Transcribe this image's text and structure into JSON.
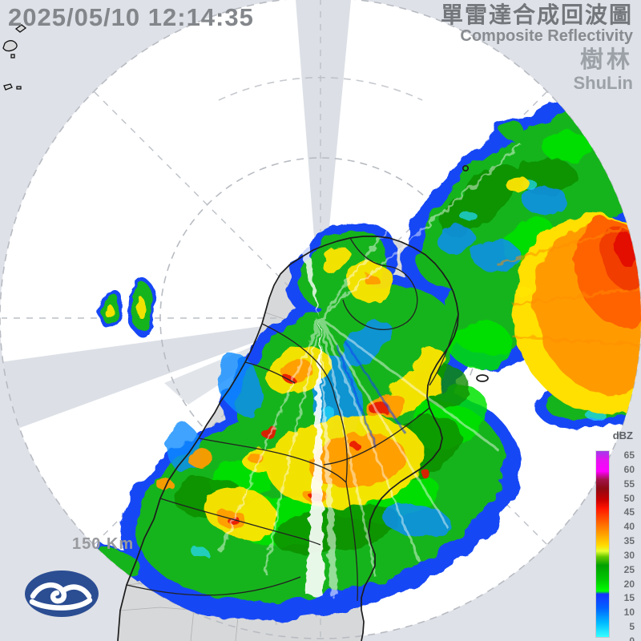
{
  "header": {
    "timestamp": "2025/05/10 12:14:35",
    "product_title_zh": "單雷達合成回波圖",
    "product_title_en": "Composite Reflectivity",
    "station_name_zh": "樹林",
    "station_name_en": "ShuLin"
  },
  "map": {
    "range_ring_label": "150 Km"
  },
  "legend": {
    "unit_label": "dBZ",
    "tick_values": [
      65,
      60,
      55,
      50,
      45,
      40,
      35,
      30,
      25,
      20,
      15,
      10,
      5,
      0
    ],
    "scale_max_dbz": 65,
    "scale_min_dbz": 0,
    "gradient_stops": [
      {
        "dbz": 65,
        "color": "#A03CE8"
      },
      {
        "dbz": 62,
        "color": "#E414F0"
      },
      {
        "dbz": 58,
        "color": "#FF00FF"
      },
      {
        "dbz": 55,
        "color": "#A01446"
      },
      {
        "dbz": 52,
        "color": "#8C0A14"
      },
      {
        "dbz": 48,
        "color": "#C80000"
      },
      {
        "dbz": 45,
        "color": "#FF1400"
      },
      {
        "dbz": 40,
        "color": "#FF6400"
      },
      {
        "dbz": 36,
        "color": "#FFA000"
      },
      {
        "dbz": 32,
        "color": "#FFDC00"
      },
      {
        "dbz": 30,
        "color": "#E6FF32"
      },
      {
        "dbz": 28,
        "color": "#64C800"
      },
      {
        "dbz": 25,
        "color": "#00A000"
      },
      {
        "dbz": 20,
        "color": "#00C800"
      },
      {
        "dbz": 16,
        "color": "#00FF00"
      },
      {
        "dbz": 15,
        "color": "#1432FF"
      },
      {
        "dbz": 10,
        "color": "#0064FF"
      },
      {
        "dbz": 5,
        "color": "#00B9FF"
      },
      {
        "dbz": 0,
        "color": "#37FFFF"
      }
    ]
  },
  "logo": {
    "name": "central-weather-bureau-logo",
    "background_color": "#2B4D92"
  },
  "colors": {
    "background": "#dee1e7",
    "radar_coverage": "#ffffff",
    "land": "#d7d8da",
    "grid_dash": "#b8bcc2",
    "boundary_black": "#1c1c1c",
    "boundary_gray": "#ababab"
  }
}
